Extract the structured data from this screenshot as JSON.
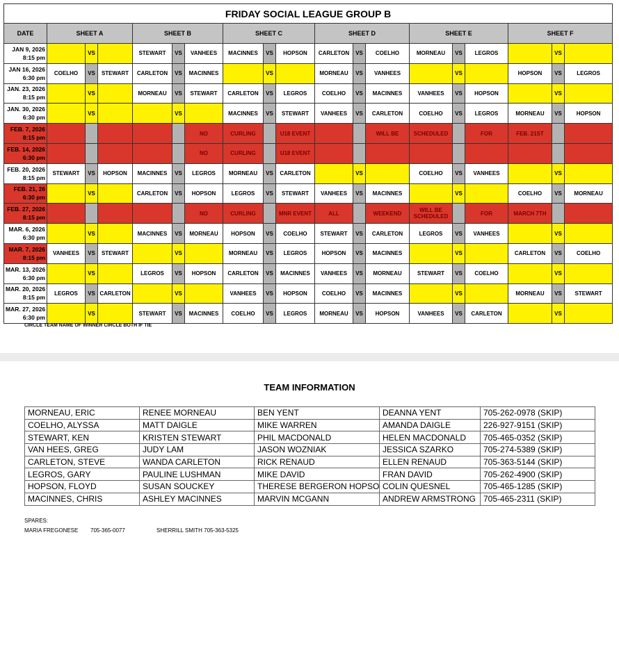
{
  "schedule": {
    "title": "FRIDAY SOCIAL LEAGUE GROUP B",
    "date_header": "DATE",
    "sheets": [
      "SHEET A",
      "SHEET B",
      "SHEET C",
      "SHEET D",
      "SHEET E",
      "SHEET F"
    ],
    "rows": [
      {
        "date": "JAN 9, 2026",
        "time": "8:15 pm",
        "games": [
          [
            null,
            "VS",
            null
          ],
          [
            "STEWART",
            "VS",
            "VANHEES"
          ],
          [
            "MACINNES",
            "VS",
            "HOPSON"
          ],
          [
            "CARLETON",
            "VS",
            "COELHO"
          ],
          [
            "MORNEAU",
            "VS",
            "LEGROS"
          ],
          [
            null,
            "VS",
            null
          ]
        ]
      },
      {
        "date": "JAN 16, 2026",
        "time": "6:30 pm",
        "games": [
          [
            "COELHO",
            "VS",
            "STEWART"
          ],
          [
            "CARLETON",
            "VS",
            "MACINNES"
          ],
          [
            null,
            "VS",
            null
          ],
          [
            "MORNEAU",
            "VS",
            "VANHEES"
          ],
          [
            null,
            "VS",
            null
          ],
          [
            "HOPSON",
            "VS",
            "LEGROS"
          ]
        ]
      },
      {
        "date": "JAN. 23, 2026",
        "time": "8:15 pm",
        "games": [
          [
            null,
            "VS",
            null
          ],
          [
            "MORNEAU",
            "VS",
            "STEWART"
          ],
          [
            "CARLETON",
            "VS",
            "LEGROS"
          ],
          [
            "COELHO",
            "VS",
            "MACINNES"
          ],
          [
            "VANHEES",
            "VS",
            "HOPSON"
          ],
          [
            null,
            "VS",
            null
          ]
        ]
      },
      {
        "date": "JAN. 30, 2026",
        "time": "6:30 pm",
        "games": [
          [
            null,
            "VS",
            null
          ],
          [
            null,
            "VS",
            null
          ],
          [
            "MACINNES",
            "VS",
            "STEWART"
          ],
          [
            "VANHEES",
            "VS",
            "CARLETON"
          ],
          [
            "COELHO",
            "VS",
            "LEGROS"
          ],
          [
            "MORNEAU",
            "VS",
            "HOPSON"
          ]
        ]
      },
      {
        "date": "FEB. 7, 2026",
        "time": "8:15 pm",
        "cancelled": true,
        "games": [
          [
            null,
            null,
            null
          ],
          [
            null,
            null,
            "NO"
          ],
          [
            "CURLING",
            null,
            "U18 EVENT"
          ],
          [
            null,
            null,
            "WILL BE"
          ],
          [
            "SCHEDULED",
            null,
            "FOR"
          ],
          [
            "FEB. 21ST",
            null,
            null
          ]
        ]
      },
      {
        "date": "FEB. 14, 2026",
        "time": "6:30 pm",
        "cancelled": true,
        "games": [
          [
            null,
            null,
            null
          ],
          [
            null,
            null,
            "NO"
          ],
          [
            "CURLING",
            null,
            "U18 EVENT"
          ],
          [
            null,
            null,
            null
          ],
          [
            null,
            null,
            null
          ],
          [
            null,
            null,
            null
          ]
        ]
      },
      {
        "date": "FEB. 20, 2026",
        "time": "8:15 pm",
        "games": [
          [
            "STEWART",
            "VS",
            "HOPSON"
          ],
          [
            "MACINNES",
            "VS",
            "LEGROS"
          ],
          [
            "MORNEAU",
            "VS",
            "CARLETON"
          ],
          [
            null,
            "VS",
            null
          ],
          [
            "COELHO",
            "VS",
            "VANHEES"
          ],
          [
            null,
            "VS",
            null
          ]
        ]
      },
      {
        "date": "FEB. 21, 26",
        "time": "6:30 pm",
        "date_highlight": true,
        "games": [
          [
            null,
            "VS",
            null
          ],
          [
            "CARLETON",
            "VS",
            "HOPSON"
          ],
          [
            "LEGROS",
            "VS",
            "STEWART"
          ],
          [
            "VANHEES",
            "VS",
            "MACINNES"
          ],
          [
            null,
            "VS",
            null
          ],
          [
            "COELHO",
            "VS",
            "MORNEAU"
          ]
        ]
      },
      {
        "date": "FEB. 27, 2026",
        "time": "8:15 pm",
        "cancelled": true,
        "games": [
          [
            null,
            null,
            null
          ],
          [
            null,
            null,
            "NO"
          ],
          [
            "CURLING",
            null,
            "MNR EVENT"
          ],
          [
            "ALL",
            null,
            "WEEKEND"
          ],
          [
            "WILL BE SCHEDULED",
            null,
            "FOR"
          ],
          [
            "MARCH 7TH",
            null,
            null
          ]
        ]
      },
      {
        "date": "MAR. 6, 2026",
        "time": "6:30 pm",
        "games": [
          [
            null,
            "VS",
            null
          ],
          [
            "MACINNES",
            "VS",
            "MORNEAU"
          ],
          [
            "HOPSON",
            "VS",
            "COELHO"
          ],
          [
            "STEWART",
            "VS",
            "CARLETON"
          ],
          [
            "LEGROS",
            "VS",
            "VANHEES"
          ],
          [
            null,
            "VS",
            null
          ]
        ]
      },
      {
        "date": "MAR. 7, 2026",
        "time": "8:15 pm",
        "date_highlight": true,
        "games": [
          [
            "VANHEES",
            "VS",
            "STEWART"
          ],
          [
            null,
            "VS",
            null
          ],
          [
            "MORNEAU",
            "VS",
            "LEGROS"
          ],
          [
            "HOPSON",
            "VS",
            "MACINNES"
          ],
          [
            null,
            "VS",
            null
          ],
          [
            "CARLETON",
            "VS",
            "COELHO"
          ]
        ]
      },
      {
        "date": "MAR. 13, 2026",
        "time": "6:30 pm",
        "games": [
          [
            null,
            "VS",
            null
          ],
          [
            "LEGROS",
            "VS",
            "HOPSON"
          ],
          [
            "CARLETON",
            "VS",
            "MACINNES"
          ],
          [
            "VANHEES",
            "VS",
            "MORNEAU"
          ],
          [
            "STEWART",
            "VS",
            "COELHO"
          ],
          [
            null,
            "VS",
            null
          ]
        ]
      },
      {
        "date": "MAR. 20, 2026",
        "time": "8:15 pm",
        "games": [
          [
            "LEGROS",
            "VS",
            "CARLETON"
          ],
          [
            null,
            "VS",
            null
          ],
          [
            "VANHEES",
            "VS",
            "HOPSON"
          ],
          [
            "COELHO",
            "VS",
            "MACINNES"
          ],
          [
            null,
            "VS",
            null
          ],
          [
            "MORNEAU",
            "VS",
            "STEWART"
          ]
        ]
      },
      {
        "date": "MAR. 27, 2026",
        "time": "6:30 pm",
        "games": [
          [
            null,
            "VS",
            null
          ],
          [
            "STEWART",
            "VS",
            "MACINNES"
          ],
          [
            "COELHO",
            "VS",
            "LEGROS"
          ],
          [
            "MORNEAU",
            "VS",
            "HOPSON"
          ],
          [
            "VANHEES",
            "VS",
            "CARLETON"
          ],
          [
            null,
            "VS",
            null
          ]
        ]
      }
    ],
    "note": "CIRCLE TEAM NAME OF WINNER CIRCLE BOTH IF TIE"
  },
  "team_info": {
    "title": "TEAM INFORMATION",
    "rows": [
      [
        "MORNEAU, ERIC",
        "RENEE MORNEAU",
        "BEN YENT",
        "DEANNA YENT",
        "705-262-0978 (SKIP)"
      ],
      [
        "COELHO, ALYSSA",
        "MATT DAIGLE",
        "MIKE WARREN",
        "AMANDA DAIGLE",
        "226-927-9151 (SKIP)"
      ],
      [
        "STEWART, KEN",
        "KRISTEN STEWART",
        "PHIL MACDONALD",
        "HELEN MACDONALD",
        "705-465-0352 (SKIP)"
      ],
      [
        "VAN HEES, GREG",
        "JUDY LAM",
        "JASON WOZNIAK",
        "JESSICA SZARKO",
        "705-274-5389 (SKIP)"
      ],
      [
        "CARLETON, STEVE",
        "WANDA CARLETON",
        "RICK RENAUD",
        "ELLEN RENAUD",
        "705-363-5144 (SKIP)"
      ],
      [
        "LEGROS, GARY",
        "PAULINE LUSHMAN",
        "MIKE DAVID",
        "FRAN DAVID",
        "705-262-4900 (SKIP)"
      ],
      [
        "HOPSON, FLOYD",
        "SUSAN SOUCKEY",
        "THERESE BERGERON HOPSON",
        "COLIN QUESNEL",
        "705-465-1285 (SKIP)"
      ],
      [
        "MACINNES, CHRIS",
        "ASHLEY MACINNES",
        "MARVIN MCGANN",
        "ANDREW ARMSTRONG",
        "705-465-2311 (SKIP)"
      ]
    ],
    "spares_label": "SPARES:",
    "spares": [
      "MARIA FREGONESE",
      "705-365-0077",
      "SHERRILL SMITH 705-363-5325"
    ]
  }
}
